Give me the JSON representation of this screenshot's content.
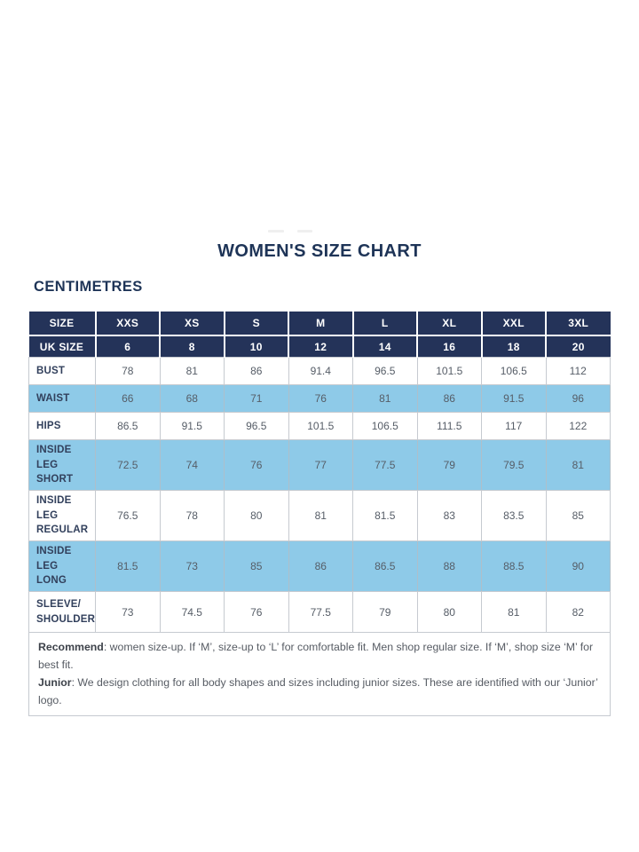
{
  "page": {
    "title": "WOMEN'S SIZE CHART",
    "unit_heading": "CENTIMETRES"
  },
  "table": {
    "size_row": {
      "label": "SIZE",
      "values": [
        "XXS",
        "XS",
        "S",
        "M",
        "L",
        "XL",
        "XXL",
        "3XL"
      ]
    },
    "uk_size_row": {
      "label": "UK SIZE",
      "values": [
        "6",
        "8",
        "10",
        "12",
        "14",
        "16",
        "18",
        "20"
      ]
    },
    "rows": [
      {
        "label_lines": [
          "BUST"
        ],
        "highlight": false,
        "values": [
          "78",
          "81",
          "86",
          "91.4",
          "96.5",
          "101.5",
          "106.5",
          "112"
        ]
      },
      {
        "label_lines": [
          "WAIST"
        ],
        "highlight": true,
        "values": [
          "66",
          "68",
          "71",
          "76",
          "81",
          "86",
          "91.5",
          "96"
        ]
      },
      {
        "label_lines": [
          "HIPS"
        ],
        "highlight": false,
        "values": [
          "86.5",
          "91.5",
          "96.5",
          "101.5",
          "106.5",
          "111.5",
          "117",
          "122"
        ]
      },
      {
        "label_lines": [
          "INSIDE LEG",
          "SHORT"
        ],
        "highlight": true,
        "values": [
          "72.5",
          "74",
          "76",
          "77",
          "77.5",
          "79",
          "79.5",
          "81"
        ]
      },
      {
        "label_lines": [
          "INSIDE LEG",
          "REGULAR"
        ],
        "highlight": false,
        "values": [
          "76.5",
          "78",
          "80",
          "81",
          "81.5",
          "83",
          "83.5",
          "85"
        ]
      },
      {
        "label_lines": [
          "INSIDE LEG",
          "LONG"
        ],
        "highlight": true,
        "values": [
          "81.5",
          "73",
          "85",
          "86",
          "86.5",
          "88",
          "88.5",
          "90"
        ]
      },
      {
        "label_lines": [
          "SLEEVE/",
          "SHOULDER"
        ],
        "highlight": false,
        "values": [
          "73",
          "74.5",
          "76",
          "77.5",
          "79",
          "80",
          "81",
          "82"
        ]
      }
    ]
  },
  "footnote": {
    "recommend_label": "Recommend",
    "recommend_text": ": women size-up. If ‘M’, size-up to ‘L’ for comfortable fit. Men shop regular size. If ‘M’, shop size ‘M’ for best fit.",
    "junior_label": "Junior",
    "junior_text": ": We design clothing for all body shapes and sizes including junior sizes. These are identified with our ‘Junior’ logo."
  },
  "colors": {
    "header_navy": "#243359",
    "highlight_blue": "#8ecae8",
    "title_navy": "#1e3457",
    "value_gray": "#565d67",
    "border_gray": "#c6cad0"
  }
}
